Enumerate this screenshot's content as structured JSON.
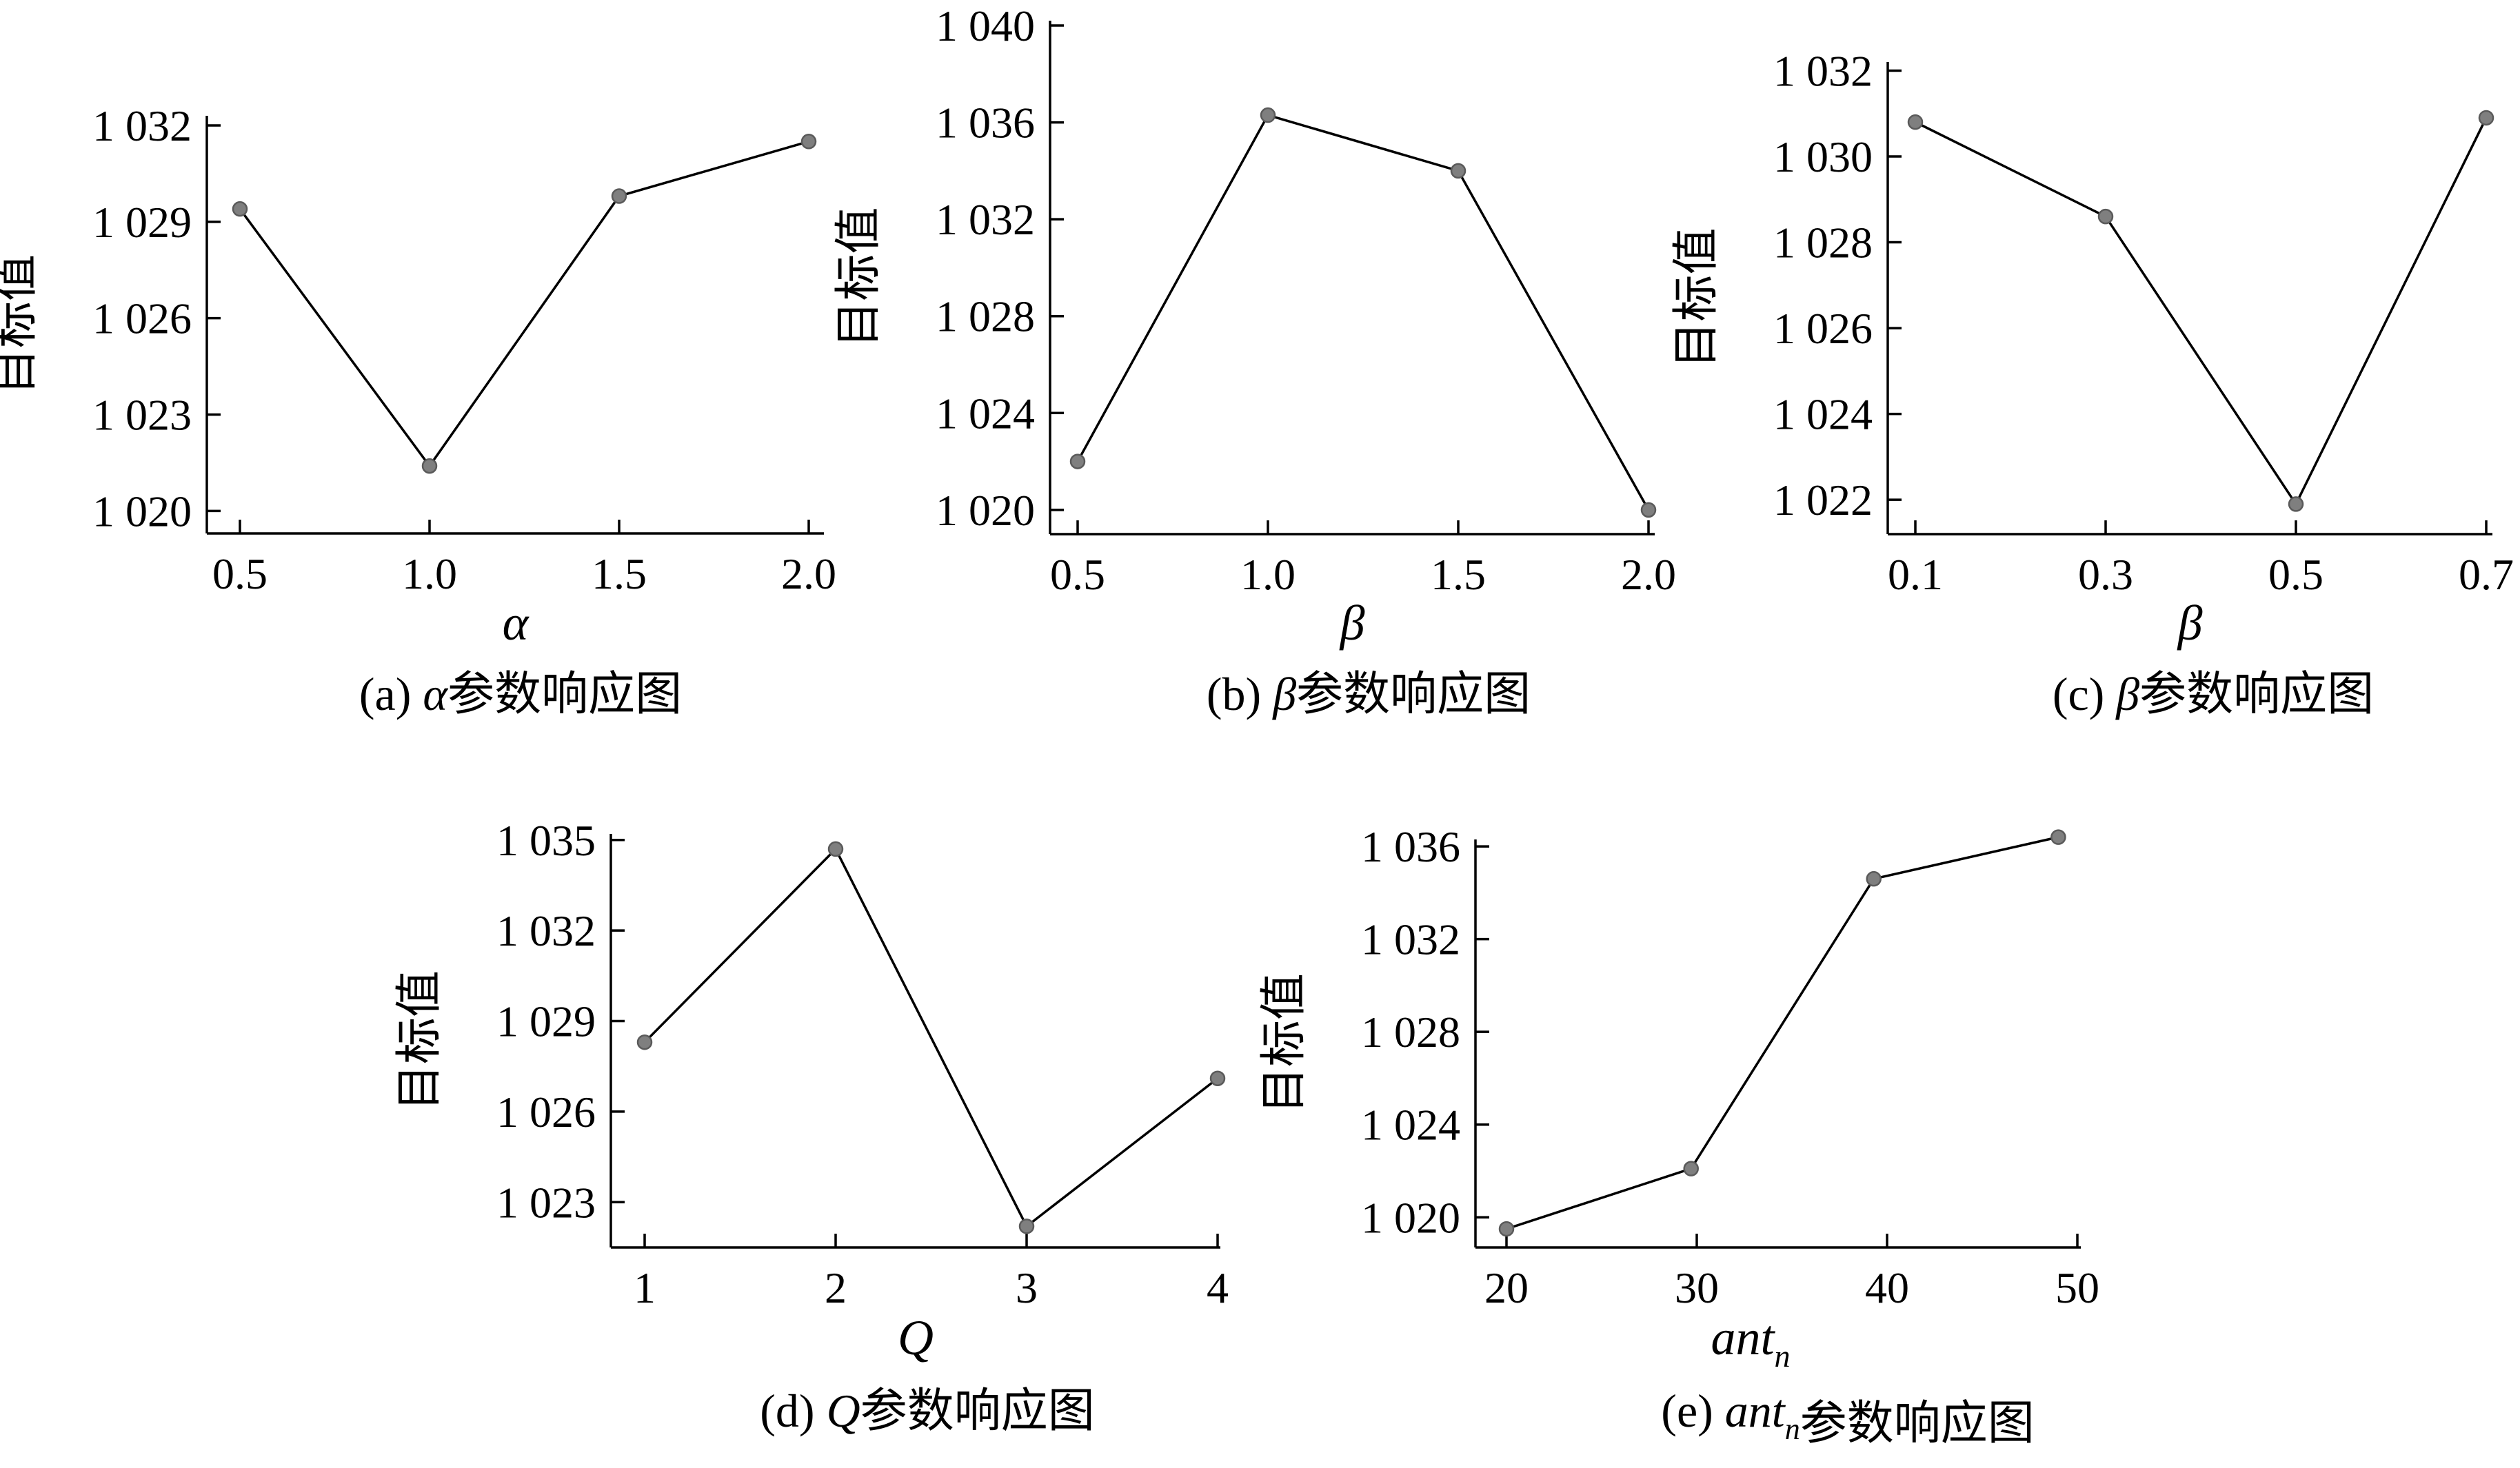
{
  "chart_data": [
    {
      "type": "line",
      "x": [
        0.5,
        1.0,
        1.5,
        2.0
      ],
      "x_ticks": [
        "0.5",
        "1.0",
        "1.5",
        "2.0"
      ],
      "values": [
        1029.4,
        1021.4,
        1029.8,
        1031.5
      ],
      "y_ticks": [
        1020,
        1023,
        1026,
        1029,
        1032
      ],
      "y_tick_labels": [
        "1 020",
        "1 023",
        "1 026",
        "1 029",
        "1 032"
      ],
      "ylim": [
        1019.3,
        1032.3
      ],
      "xlim": [
        0.41,
        2.0
      ],
      "ylabel": "目标值",
      "xlabel": "α",
      "caption_prefix": "(a) ",
      "caption_symbol": "α",
      "caption_suffix": "参数响应图"
    },
    {
      "type": "line",
      "x": [
        0.5,
        1.0,
        1.5,
        2.0
      ],
      "x_ticks": [
        "0.5",
        "1.0",
        "1.5",
        "2.0"
      ],
      "values": [
        1022.0,
        1036.3,
        1034.0,
        1020.0
      ],
      "y_ticks": [
        1020,
        1024,
        1028,
        1032,
        1036,
        1040
      ],
      "y_tick_labels": [
        "1 020",
        "1 024",
        "1 028",
        "1 032",
        "1 036",
        "1 040"
      ],
      "ylim": [
        1019.0,
        1040.2
      ],
      "xlim": [
        0.41,
        2.0
      ],
      "ylabel": "目标值",
      "xlabel": "β",
      "caption_prefix": "(b) ",
      "caption_symbol": "β",
      "caption_suffix": "参数响应图"
    },
    {
      "type": "line",
      "x": [
        0.1,
        0.3,
        0.5,
        0.7
      ],
      "x_ticks": [
        "0.1",
        "0.3",
        "0.5",
        "0.7"
      ],
      "values": [
        1030.8,
        1028.6,
        1021.9,
        1030.9
      ],
      "y_ticks": [
        1022,
        1024,
        1026,
        1028,
        1030,
        1032
      ],
      "y_tick_labels": [
        "1 022",
        "1 024",
        "1 026",
        "1 028",
        "1 030",
        "1 032"
      ],
      "ylim": [
        1021.2,
        1032.2
      ],
      "xlim": [
        0.064,
        0.7
      ],
      "ylabel": "目标值",
      "xlabel": "β",
      "caption_prefix": "(c) ",
      "caption_symbol": "β",
      "caption_suffix": "参数响应图"
    },
    {
      "type": "line",
      "x": [
        1,
        2,
        3,
        4
      ],
      "x_ticks": [
        "1",
        "2",
        "3",
        "4"
      ],
      "values": [
        1028.3,
        1034.7,
        1022.2,
        1027.1
      ],
      "y_ticks": [
        1023,
        1026,
        1029,
        1032,
        1035
      ],
      "y_tick_labels": [
        "1 023",
        "1 026",
        "1 029",
        "1 032",
        "1 035"
      ],
      "ylim": [
        1021.5,
        1035.2
      ],
      "xlim": [
        0.82,
        4.0
      ],
      "ylabel": "目标值",
      "xlabel": "Q",
      "caption_prefix": "(d) ",
      "caption_symbol": "Q",
      "caption_suffix": "参数响应图"
    },
    {
      "type": "line",
      "x": [
        20,
        29.7,
        39.3,
        49
      ],
      "x_ticks": [
        20,
        30,
        40,
        50
      ],
      "x_tick_labels": [
        "20",
        "30",
        "40",
        "50"
      ],
      "values": [
        1019.5,
        1022.1,
        1034.6,
        1036.4
      ],
      "y_ticks": [
        1020,
        1024,
        1028,
        1032,
        1036
      ],
      "y_tick_labels": [
        "1 020",
        "1 024",
        "1 028",
        "1 032",
        "1 036"
      ],
      "ylim": [
        1018.7,
        1036.3
      ],
      "xlim": [
        18.2,
        50.8
      ],
      "ylabel": "目标值",
      "xlabel_main": "ant",
      "xlabel_sub": "n",
      "caption_prefix": "(e) ",
      "caption_symbol": "ant",
      "caption_symbol_sub": "n",
      "caption_suffix": "参数响应图"
    }
  ]
}
